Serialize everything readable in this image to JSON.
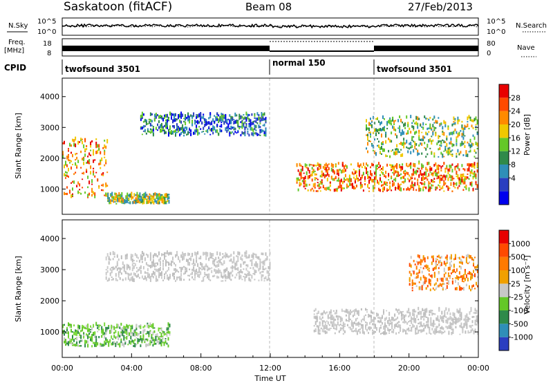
{
  "header": {
    "station": "Saskatoon (fitACF)",
    "beam": "Beam 08",
    "date": "27/Feb/2013"
  },
  "strips": {
    "noise": {
      "left_label": "N.Sky",
      "right_label": "N.Search",
      "ticks_left": [
        "10^5",
        "10^0"
      ],
      "ticks_right": [
        "10^5",
        "10^0"
      ]
    },
    "freq": {
      "left_label_top": "Freq.",
      "left_label_bottom": "[MHz]",
      "right_label": "Nave",
      "ticks_left": [
        "18",
        "8"
      ],
      "ticks_right": [
        "80",
        "0"
      ]
    },
    "cpid": {
      "label": "CPID",
      "segments": [
        {
          "label": "twofsound 3501",
          "start": 0,
          "end": 12
        },
        {
          "label": "normal 150",
          "start": 12,
          "end": 18
        },
        {
          "label": "twofsound 3501",
          "start": 18,
          "end": 24
        }
      ]
    }
  },
  "chart_data": [
    {
      "type": "heatmap",
      "panel": "power",
      "ylabel": "Slant Range [km]",
      "x_range_hours": [
        0,
        24
      ],
      "ylim": [
        180,
        4600
      ],
      "y_ticks": [
        1000,
        2000,
        3000,
        4000
      ],
      "colorbar": {
        "label": "Power [dB]",
        "ticks": [
          "28",
          "24",
          "20",
          "16",
          "12",
          "8",
          "4"
        ],
        "colors": [
          "#0000ee",
          "#2a3ec0",
          "#2f8fb8",
          "#2f8a4a",
          "#64c828",
          "#f0c800",
          "#ff8a00",
          "#ff4a00",
          "#e80000"
        ]
      },
      "features": [
        {
          "t0": 0.0,
          "t1": 2.6,
          "r0": 700,
          "r1": 2600,
          "level": "strong"
        },
        {
          "t0": 2.6,
          "t1": 6.2,
          "r0": 500,
          "r1": 800,
          "level": "medium"
        },
        {
          "t0": 4.5,
          "t1": 11.8,
          "r0": 2700,
          "r1": 3400,
          "level": "weak"
        },
        {
          "t0": 13.5,
          "t1": 24.0,
          "r0": 900,
          "r1": 1800,
          "level": "strong"
        },
        {
          "t0": 17.5,
          "t1": 24.0,
          "r0": 2000,
          "r1": 3300,
          "level": "medium"
        }
      ]
    },
    {
      "type": "heatmap",
      "panel": "velocity",
      "ylabel": "Slant Range [km]",
      "xlabel": "Time UT",
      "x_range_hours": [
        0,
        24
      ],
      "x_ticks": [
        "00:00",
        "04:00",
        "08:00",
        "12:00",
        "16:00",
        "20:00",
        "00:00"
      ],
      "ylim": [
        180,
        4600
      ],
      "y_ticks": [
        1000,
        2000,
        3000,
        4000
      ],
      "colorbar": {
        "label": "Velocity [m s⁻¹]",
        "ticks": [
          "1000",
          "500",
          "100",
          "25",
          "-25",
          "-100",
          "-500",
          "-1000"
        ],
        "colors": [
          "#2a3ec0",
          "#2f8fb8",
          "#2f8a4a",
          "#64c828",
          "#c8c8c8",
          "#f0a000",
          "#ff7a00",
          "#ff4a00",
          "#e80000"
        ]
      },
      "features": [
        {
          "t0": 0.0,
          "t1": 6.2,
          "r0": 500,
          "r1": 1200,
          "level": "green"
        },
        {
          "t0": 2.5,
          "t1": 12.0,
          "r0": 2600,
          "r1": 3500,
          "level": "grey"
        },
        {
          "t0": 14.5,
          "t1": 24.0,
          "r0": 900,
          "r1": 1700,
          "level": "grey"
        },
        {
          "t0": 20.0,
          "t1": 24.0,
          "r0": 2300,
          "r1": 3400,
          "level": "orange"
        }
      ]
    }
  ]
}
